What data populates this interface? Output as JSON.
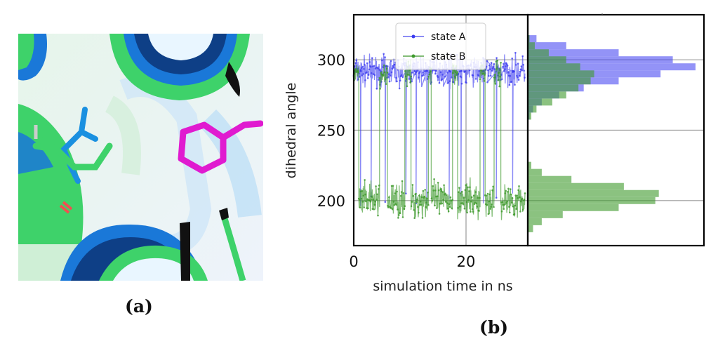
{
  "panels": {
    "a_label": "(a)",
    "b_label": "(b)"
  },
  "colors": {
    "state_a": "#3b3bf0",
    "state_b": "#3e9a2c",
    "ligand": "#e01bd0",
    "helix_blue": "#1a78d8",
    "helix_green": "#3ed26a"
  },
  "chart_data": {
    "type": "line",
    "xlabel": "simulation time in ns",
    "ylabel": "dihedral angle",
    "xlim": [
      0,
      31
    ],
    "ylim": [
      168,
      332
    ],
    "xticks": [
      0,
      20
    ],
    "yticks": [
      200,
      250,
      300
    ],
    "grid": true,
    "legend": "top-left",
    "series": [
      {
        "name": "state A",
        "mean": 292,
        "spread": 10,
        "transitions": [
          {
            "t": 1.2,
            "to": 196
          },
          {
            "t": 3.1,
            "to": 203
          },
          {
            "t": 5.6,
            "to": 199
          },
          {
            "t": 9.3,
            "to": 205
          },
          {
            "t": 11.1,
            "to": 198
          },
          {
            "t": 13.0,
            "to": 197
          },
          {
            "t": 17.0,
            "to": 201
          },
          {
            "t": 19.1,
            "to": 203
          },
          {
            "t": 23.1,
            "to": 198
          },
          {
            "t": 25.4,
            "to": 202
          },
          {
            "t": 28.3,
            "to": 205
          }
        ]
      },
      {
        "name": "state B",
        "segments": [
          {
            "start": 0.0,
            "end": 0.9,
            "level": 290
          },
          {
            "start": 0.9,
            "end": 4.6,
            "level": 200
          },
          {
            "start": 4.6,
            "end": 6.0,
            "level": 288
          },
          {
            "start": 6.0,
            "end": 9.1,
            "level": 200
          },
          {
            "start": 9.1,
            "end": 10.2,
            "level": 290
          },
          {
            "start": 10.2,
            "end": 13.3,
            "level": 200
          },
          {
            "start": 13.3,
            "end": 13.8,
            "level": 290
          },
          {
            "start": 13.8,
            "end": 17.6,
            "level": 200
          },
          {
            "start": 17.6,
            "end": 18.5,
            "level": 292
          },
          {
            "start": 18.5,
            "end": 22.5,
            "level": 200
          },
          {
            "start": 22.5,
            "end": 23.4,
            "level": 291
          },
          {
            "start": 23.4,
            "end": 25.0,
            "level": 200
          },
          {
            "start": 25.0,
            "end": 26.2,
            "level": 290
          },
          {
            "start": 26.2,
            "end": 30.5,
            "level": 200
          }
        ]
      }
    ],
    "histogram": {
      "bin_centers": [
        180,
        185,
        190,
        195,
        200,
        205,
        210,
        215,
        220,
        225,
        260,
        265,
        270,
        275,
        280,
        285,
        290,
        295,
        300,
        305,
        310,
        315
      ],
      "state_A_counts": [
        0,
        0,
        0,
        0,
        0,
        0,
        0,
        0,
        0,
        0,
        1,
        3,
        8,
        18,
        32,
        52,
        76,
        96,
        83,
        52,
        22,
        5
      ],
      "state_B_counts": [
        3,
        8,
        20,
        52,
        73,
        75,
        55,
        25,
        8,
        2,
        2,
        5,
        14,
        22,
        29,
        36,
        38,
        30,
        22,
        12,
        4,
        1
      ]
    }
  }
}
